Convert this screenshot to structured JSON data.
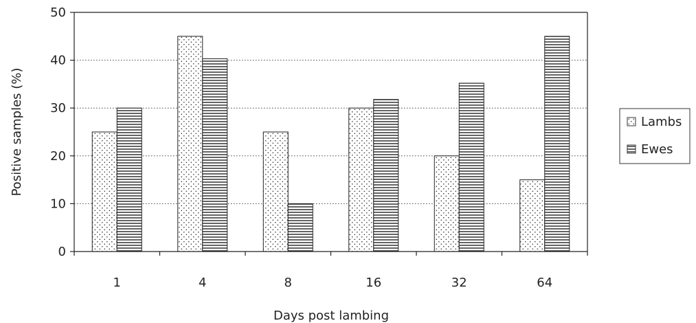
{
  "chart_data": {
    "type": "bar",
    "title": "",
    "xlabel": "Days post lambing",
    "ylabel": "Positive samples (%)",
    "categories": [
      "1",
      "4",
      "8",
      "16",
      "32",
      "64"
    ],
    "series": [
      {
        "name": "Lambs",
        "pattern": "dots",
        "values": [
          25,
          45,
          25,
          30,
          20,
          15
        ]
      },
      {
        "name": "Ewes",
        "pattern": "horizontal-lines",
        "values": [
          30,
          40.3,
          10,
          31.8,
          35.2,
          45
        ]
      }
    ],
    "ylim": [
      0,
      50
    ],
    "yticks": [
      0,
      10,
      20,
      30,
      40,
      50
    ],
    "grid": "horizontal dotted",
    "legend_position": "right",
    "colors": {
      "stroke": "#222222",
      "fill": "#ffffff",
      "grid": "#444444"
    }
  }
}
